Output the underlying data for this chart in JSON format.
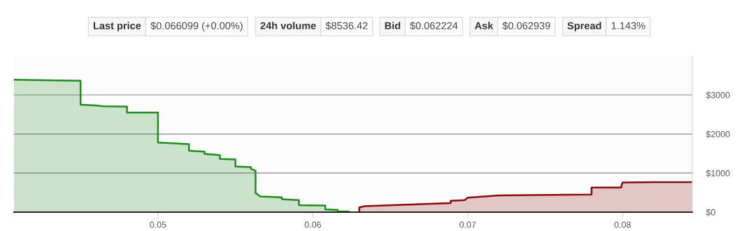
{
  "chart_data": {
    "type": "area",
    "annotations": [
      "Last price",
      "$0.066099 (+0.00%)",
      "24h volume",
      "$8536.42",
      "Bid",
      "$0.062224",
      "Ask",
      "$0.062939",
      "Spread",
      "1.143%"
    ],
    "series": [
      {
        "color": "#1e8c1e",
        "x": [
          0.0407,
          0.045,
          0.045,
          0.0459,
          0.0465,
          0.048,
          0.048,
          0.05,
          0.05,
          0.052,
          0.052,
          0.053,
          0.053,
          0.054,
          0.054,
          0.055,
          0.055,
          0.056,
          0.056,
          0.0563,
          0.0563,
          0.0566,
          0.058,
          0.058,
          0.0591,
          0.0591,
          0.0608,
          0.0608,
          0.0616,
          0.0616,
          0.0623
        ],
        "values": [
          3390,
          3360,
          2750,
          2730,
          2710,
          2700,
          2550,
          2550,
          1780,
          1740,
          1570,
          1550,
          1490,
          1460,
          1360,
          1350,
          1170,
          1150,
          1110,
          1060,
          490,
          400,
          380,
          330,
          310,
          180,
          170,
          70,
          60,
          20,
          20
        ]
      },
      {
        "color": "#8b0a0a",
        "x": [
          0.063,
          0.063,
          0.0633,
          0.0651,
          0.0689,
          0.0689,
          0.0698,
          0.07,
          0.072,
          0.078,
          0.078,
          0.0799,
          0.08,
          0.0821,
          0.0845
        ],
        "values": [
          0,
          120,
          150,
          180,
          230,
          290,
          310,
          370,
          430,
          450,
          630,
          630,
          760,
          770,
          770
        ]
      }
    ],
    "xlim": [
      0.0407,
      0.0845
    ],
    "xticks": [
      0.05,
      0.06,
      0.07,
      0.08
    ],
    "ylim": [
      0,
      4000
    ],
    "yticks": [
      {
        "value": 0,
        "label": "$0"
      },
      {
        "value": 1000,
        "label": "$1000"
      },
      {
        "value": 2000,
        "label": "$2000"
      },
      {
        "value": 3000,
        "label": "$3000"
      }
    ],
    "grid": "y",
    "legend": false
  }
}
